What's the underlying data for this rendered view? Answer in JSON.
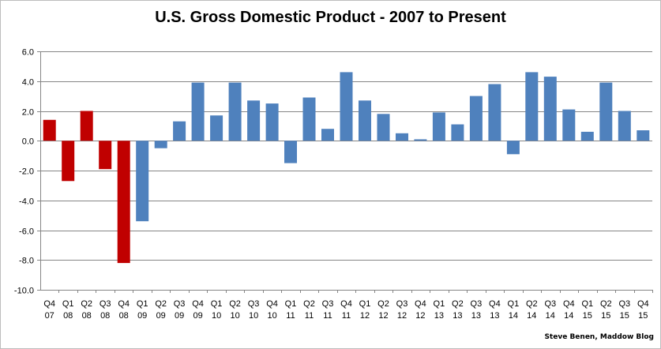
{
  "chart_data": {
    "type": "bar",
    "title": "U.S. Gross Domestic Product - 2007 to Present",
    "xlabel": "",
    "ylabel": "",
    "ylim": [
      -10,
      6
    ],
    "yticks": [
      "6.0",
      "4.0",
      "2.0",
      "0.0",
      "-2.0",
      "-4.0",
      "-6.0",
      "-8.0",
      "-10.0"
    ],
    "grid": true,
    "legend": "none",
    "categories": [
      [
        "Q4",
        "07"
      ],
      [
        "Q1",
        "08"
      ],
      [
        "Q2",
        "08"
      ],
      [
        "Q3",
        "08"
      ],
      [
        "Q4",
        "08"
      ],
      [
        "Q1",
        "09"
      ],
      [
        "Q2",
        "09"
      ],
      [
        "Q3",
        "09"
      ],
      [
        "Q4",
        "09"
      ],
      [
        "Q1",
        "10"
      ],
      [
        "Q2",
        "10"
      ],
      [
        "Q3",
        "10"
      ],
      [
        "Q4",
        "10"
      ],
      [
        "Q1",
        "11"
      ],
      [
        "Q2",
        "11"
      ],
      [
        "Q3",
        "11"
      ],
      [
        "Q4",
        "11"
      ],
      [
        "Q1",
        "12"
      ],
      [
        "Q2",
        "12"
      ],
      [
        "Q3",
        "12"
      ],
      [
        "Q4",
        "12"
      ],
      [
        "Q1",
        "13"
      ],
      [
        "Q2",
        "13"
      ],
      [
        "Q3",
        "13"
      ],
      [
        "Q4",
        "13"
      ],
      [
        "Q1",
        "14"
      ],
      [
        "Q2",
        "14"
      ],
      [
        "Q3",
        "14"
      ],
      [
        "Q4",
        "14"
      ],
      [
        "Q1",
        "15"
      ],
      [
        "Q2",
        "15"
      ],
      [
        "Q3",
        "15"
      ],
      [
        "Q4",
        "15"
      ]
    ],
    "values": [
      1.4,
      -2.7,
      2.0,
      -1.9,
      -8.2,
      -5.4,
      -0.5,
      1.3,
      3.9,
      1.7,
      3.9,
      2.7,
      2.5,
      -1.5,
      2.9,
      0.8,
      4.6,
      2.7,
      1.8,
      0.5,
      0.1,
      1.9,
      1.1,
      3.0,
      3.8,
      -0.9,
      4.6,
      4.3,
      2.1,
      0.6,
      3.9,
      2.0,
      0.7
    ],
    "bar_colors": [
      "#c00000",
      "#c00000",
      "#c00000",
      "#c00000",
      "#c00000",
      "#4f81bd",
      "#4f81bd",
      "#4f81bd",
      "#4f81bd",
      "#4f81bd",
      "#4f81bd",
      "#4f81bd",
      "#4f81bd",
      "#4f81bd",
      "#4f81bd",
      "#4f81bd",
      "#4f81bd",
      "#4f81bd",
      "#4f81bd",
      "#4f81bd",
      "#4f81bd",
      "#4f81bd",
      "#4f81bd",
      "#4f81bd",
      "#4f81bd",
      "#4f81bd",
      "#4f81bd",
      "#4f81bd",
      "#4f81bd",
      "#4f81bd",
      "#4f81bd",
      "#4f81bd",
      "#4f81bd"
    ],
    "credit": "Steve Benen, Maddow Blog"
  }
}
